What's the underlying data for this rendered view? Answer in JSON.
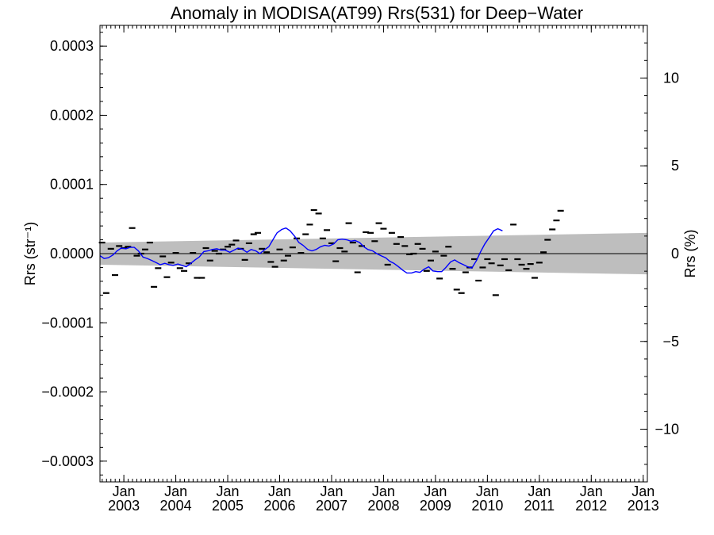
{
  "chart_data": {
    "type": "scatter",
    "title": "Anomaly in MODISA(AT99) Rrs(531) for Deep−Water",
    "ylabel_left": "Rrs (str⁻¹)",
    "ylabel_right": "Rrs (%)",
    "xlabel": "",
    "xlim": [
      2002.54,
      2013.08
    ],
    "ylim_left": [
      -0.00033,
      0.00033
    ],
    "ylim_right": [
      -13.0,
      13.0
    ],
    "left_ticks": [
      {
        "v": 0.0003,
        "label": "0.0003"
      },
      {
        "v": 0.0002,
        "label": "0.0002"
      },
      {
        "v": 0.0001,
        "label": "0.0001"
      },
      {
        "v": 0.0,
        "label": "0.0000"
      },
      {
        "v": -0.0001,
        "label": "−0.0001"
      },
      {
        "v": -0.0002,
        "label": "−0.0002"
      },
      {
        "v": -0.0003,
        "label": "−0.0003"
      }
    ],
    "right_ticks": [
      {
        "v": 10,
        "label": "10"
      },
      {
        "v": 5,
        "label": "5"
      },
      {
        "v": 0,
        "label": "0"
      },
      {
        "v": -5,
        "label": "−5"
      },
      {
        "v": -10,
        "label": "−10"
      }
    ],
    "x_ticks": [
      {
        "v": 2003.0,
        "month": "Jan",
        "year": "2003"
      },
      {
        "v": 2004.0,
        "month": "Jan",
        "year": "2004"
      },
      {
        "v": 2005.0,
        "month": "Jan",
        "year": "2005"
      },
      {
        "v": 2006.0,
        "month": "Jan",
        "year": "2006"
      },
      {
        "v": 2007.0,
        "month": "Jan",
        "year": "2007"
      },
      {
        "v": 2008.0,
        "month": "Jan",
        "year": "2008"
      },
      {
        "v": 2009.0,
        "month": "Jan",
        "year": "2009"
      },
      {
        "v": 2010.0,
        "month": "Jan",
        "year": "2010"
      },
      {
        "v": 2011.0,
        "month": "Jan",
        "year": "2011"
      },
      {
        "v": 2012.0,
        "month": "Jan",
        "year": "2012"
      },
      {
        "v": 2013.0,
        "month": "Jan",
        "year": "2013"
      }
    ],
    "band": {
      "x": [
        2002.54,
        2013.08
      ],
      "upper": [
        1.6e-05,
        3e-05
      ],
      "lower": [
        -1.6e-05,
        -3e-05
      ],
      "color": "#bebebe"
    },
    "series": [
      {
        "kind": "monthly-markers",
        "color": "#000000",
        "points": [
          {
            "x": 2002.58,
            "y": 1.6e-05
          },
          {
            "x": 2002.66,
            "y": -5.7e-05
          },
          {
            "x": 2002.75,
            "y": 7e-06
          },
          {
            "x": 2002.83,
            "y": -3.1e-05
          },
          {
            "x": 2002.91,
            "y": 1.1e-05
          },
          {
            "x": 2003.0,
            "y": 8e-06
          },
          {
            "x": 2003.08,
            "y": 1e-05
          },
          {
            "x": 2003.16,
            "y": 3.7e-05
          },
          {
            "x": 2003.25,
            "y": -3e-06
          },
          {
            "x": 2003.33,
            "y": 0.0
          },
          {
            "x": 2003.41,
            "y": 6e-06
          },
          {
            "x": 2003.5,
            "y": 1.6e-05
          },
          {
            "x": 2003.58,
            "y": -4.8e-05
          },
          {
            "x": 2003.66,
            "y": -2.1e-05
          },
          {
            "x": 2003.75,
            "y": -4e-06
          },
          {
            "x": 2003.83,
            "y": -3.4e-05
          },
          {
            "x": 2003.91,
            "y": -1.3e-05
          },
          {
            "x": 2004.0,
            "y": 1e-06
          },
          {
            "x": 2004.08,
            "y": -2.1e-05
          },
          {
            "x": 2004.16,
            "y": -2.5e-05
          },
          {
            "x": 2004.25,
            "y": -1.4e-05
          },
          {
            "x": 2004.33,
            "y": 1e-06
          },
          {
            "x": 2004.41,
            "y": -3.5e-05
          },
          {
            "x": 2004.5,
            "y": -3.5e-05
          },
          {
            "x": 2004.58,
            "y": 8e-06
          },
          {
            "x": 2004.66,
            "y": -1e-05
          },
          {
            "x": 2004.75,
            "y": 4e-06
          },
          {
            "x": 2004.83,
            "y": 0.0
          },
          {
            "x": 2004.91,
            "y": 6e-06
          },
          {
            "x": 2005.0,
            "y": 1e-05
          },
          {
            "x": 2005.08,
            "y": 1.3e-05
          },
          {
            "x": 2005.16,
            "y": 1.9e-05
          },
          {
            "x": 2005.25,
            "y": 7e-06
          },
          {
            "x": 2005.33,
            "y": -9e-06
          },
          {
            "x": 2005.41,
            "y": 1.5e-05
          },
          {
            "x": 2005.5,
            "y": 2.8e-05
          },
          {
            "x": 2005.58,
            "y": 3e-05
          },
          {
            "x": 2005.66,
            "y": 7e-06
          },
          {
            "x": 2005.75,
            "y": 2e-06
          },
          {
            "x": 2005.83,
            "y": -1.2e-05
          },
          {
            "x": 2005.91,
            "y": -1.9e-05
          },
          {
            "x": 2006.0,
            "y": 6e-06
          },
          {
            "x": 2006.08,
            "y": -1e-05
          },
          {
            "x": 2006.16,
            "y": -3e-06
          },
          {
            "x": 2006.25,
            "y": 9e-06
          },
          {
            "x": 2006.33,
            "y": 2.2e-05
          },
          {
            "x": 2006.41,
            "y": 1e-06
          },
          {
            "x": 2006.5,
            "y": 2.8e-05
          },
          {
            "x": 2006.58,
            "y": 4.2e-05
          },
          {
            "x": 2006.66,
            "y": 6.3e-05
          },
          {
            "x": 2006.75,
            "y": 5.8e-05
          },
          {
            "x": 2006.83,
            "y": 2.2e-05
          },
          {
            "x": 2006.91,
            "y": 3.4e-05
          },
          {
            "x": 2007.0,
            "y": 1.5e-05
          },
          {
            "x": 2007.08,
            "y": -1.1e-05
          },
          {
            "x": 2007.16,
            "y": 8e-06
          },
          {
            "x": 2007.25,
            "y": 3e-06
          },
          {
            "x": 2007.33,
            "y": 4.4e-05
          },
          {
            "x": 2007.41,
            "y": 1.6e-05
          },
          {
            "x": 2007.5,
            "y": -2.7e-05
          },
          {
            "x": 2007.58,
            "y": 1.1e-05
          },
          {
            "x": 2007.66,
            "y": 3.1e-05
          },
          {
            "x": 2007.75,
            "y": 3e-05
          },
          {
            "x": 2007.83,
            "y": 1.8e-05
          },
          {
            "x": 2007.91,
            "y": 4.4e-05
          },
          {
            "x": 2008.0,
            "y": 3.6e-05
          },
          {
            "x": 2008.08,
            "y": -1.6e-05
          },
          {
            "x": 2008.16,
            "y": 3e-05
          },
          {
            "x": 2008.25,
            "y": 1.4e-05
          },
          {
            "x": 2008.33,
            "y": 2.4e-05
          },
          {
            "x": 2008.41,
            "y": 1.1e-05
          },
          {
            "x": 2008.5,
            "y": -1e-06
          },
          {
            "x": 2008.58,
            "y": 0.0
          },
          {
            "x": 2008.66,
            "y": 1.4e-05
          },
          {
            "x": 2008.75,
            "y": 7e-06
          },
          {
            "x": 2008.83,
            "y": -2.5e-05
          },
          {
            "x": 2008.91,
            "y": -1e-05
          },
          {
            "x": 2009.0,
            "y": 3e-06
          },
          {
            "x": 2009.08,
            "y": -3.6e-05
          },
          {
            "x": 2009.16,
            "y": -3e-06
          },
          {
            "x": 2009.25,
            "y": 1e-05
          },
          {
            "x": 2009.33,
            "y": -2.2e-05
          },
          {
            "x": 2009.41,
            "y": -5.2e-05
          },
          {
            "x": 2009.5,
            "y": -5.7e-05
          },
          {
            "x": 2009.58,
            "y": -2.7e-05
          },
          {
            "x": 2009.66,
            "y": -2e-05
          },
          {
            "x": 2009.75,
            "y": -8e-06
          },
          {
            "x": 2009.83,
            "y": -3.9e-05
          },
          {
            "x": 2009.91,
            "y": -2e-05
          },
          {
            "x": 2010.0,
            "y": -8e-06
          },
          {
            "x": 2010.08,
            "y": -1.4e-05
          },
          {
            "x": 2010.16,
            "y": -6e-05
          },
          {
            "x": 2010.25,
            "y": -1.7e-05
          },
          {
            "x": 2010.33,
            "y": -8e-06
          },
          {
            "x": 2010.41,
            "y": -2.4e-05
          },
          {
            "x": 2010.5,
            "y": 4.2e-05
          },
          {
            "x": 2010.58,
            "y": -8e-06
          },
          {
            "x": 2010.66,
            "y": -1.6e-05
          },
          {
            "x": 2010.75,
            "y": -2.2e-05
          },
          {
            "x": 2010.83,
            "y": -1.5e-05
          },
          {
            "x": 2010.91,
            "y": -3.5e-05
          },
          {
            "x": 2011.0,
            "y": -1.3e-05
          },
          {
            "x": 2011.08,
            "y": 2e-06
          },
          {
            "x": 2011.16,
            "y": 2e-05
          },
          {
            "x": 2011.25,
            "y": 3.5e-05
          },
          {
            "x": 2011.33,
            "y": 4.8e-05
          },
          {
            "x": 2011.41,
            "y": 6.2e-05
          }
        ]
      },
      {
        "kind": "running-mean",
        "color": "#0000ff",
        "points": [
          {
            "x": 2002.54,
            "y": -3e-06
          },
          {
            "x": 2002.62,
            "y": -7e-06
          },
          {
            "x": 2002.7,
            "y": -6e-06
          },
          {
            "x": 2002.79,
            "y": -2e-06
          },
          {
            "x": 2002.87,
            "y": 4e-06
          },
          {
            "x": 2002.95,
            "y": 8e-06
          },
          {
            "x": 2003.04,
            "y": 7e-06
          },
          {
            "x": 2003.12,
            "y": 9e-06
          },
          {
            "x": 2003.2,
            "y": 9e-06
          },
          {
            "x": 2003.28,
            "y": 4e-06
          },
          {
            "x": 2003.37,
            "y": -5e-06
          },
          {
            "x": 2003.45,
            "y": -7e-06
          },
          {
            "x": 2003.54,
            "y": -1e-05
          },
          {
            "x": 2003.62,
            "y": -1.3e-05
          },
          {
            "x": 2003.7,
            "y": -1.6e-05
          },
          {
            "x": 2003.79,
            "y": -1.4e-05
          },
          {
            "x": 2003.87,
            "y": -1.6e-05
          },
          {
            "x": 2003.95,
            "y": -1.7e-05
          },
          {
            "x": 2004.04,
            "y": -1.5e-05
          },
          {
            "x": 2004.12,
            "y": -1.7e-05
          },
          {
            "x": 2004.2,
            "y": -1.9e-05
          },
          {
            "x": 2004.29,
            "y": -1.4e-05
          },
          {
            "x": 2004.37,
            "y": -9e-06
          },
          {
            "x": 2004.45,
            "y": -5e-06
          },
          {
            "x": 2004.54,
            "y": 3e-06
          },
          {
            "x": 2004.62,
            "y": 4e-06
          },
          {
            "x": 2004.7,
            "y": 6e-06
          },
          {
            "x": 2004.79,
            "y": 7e-06
          },
          {
            "x": 2004.87,
            "y": 5e-06
          },
          {
            "x": 2004.95,
            "y": 5e-06
          },
          {
            "x": 2005.04,
            "y": 2e-06
          },
          {
            "x": 2005.12,
            "y": 5e-06
          },
          {
            "x": 2005.2,
            "y": 8e-06
          },
          {
            "x": 2005.29,
            "y": 6e-06
          },
          {
            "x": 2005.37,
            "y": 2e-06
          },
          {
            "x": 2005.45,
            "y": 6e-06
          },
          {
            "x": 2005.54,
            "y": 4e-06
          },
          {
            "x": 2005.62,
            "y": 0.0
          },
          {
            "x": 2005.7,
            "y": 5e-06
          },
          {
            "x": 2005.79,
            "y": 1e-05
          },
          {
            "x": 2005.87,
            "y": 2e-05
          },
          {
            "x": 2005.95,
            "y": 3e-05
          },
          {
            "x": 2006.04,
            "y": 3.5e-05
          },
          {
            "x": 2006.12,
            "y": 3.7e-05
          },
          {
            "x": 2006.2,
            "y": 3.3e-05
          },
          {
            "x": 2006.29,
            "y": 2.5e-05
          },
          {
            "x": 2006.37,
            "y": 1.6e-05
          },
          {
            "x": 2006.45,
            "y": 1.2e-05
          },
          {
            "x": 2006.54,
            "y": 6e-06
          },
          {
            "x": 2006.62,
            "y": 4e-06
          },
          {
            "x": 2006.7,
            "y": 6e-06
          },
          {
            "x": 2006.79,
            "y": 1e-05
          },
          {
            "x": 2006.87,
            "y": 1.2e-05
          },
          {
            "x": 2006.95,
            "y": 1.1e-05
          },
          {
            "x": 2007.04,
            "y": 1.4e-05
          },
          {
            "x": 2007.12,
            "y": 2e-05
          },
          {
            "x": 2007.2,
            "y": 2.1e-05
          },
          {
            "x": 2007.29,
            "y": 2e-05
          },
          {
            "x": 2007.37,
            "y": 1.8e-05
          },
          {
            "x": 2007.45,
            "y": 1.9e-05
          },
          {
            "x": 2007.54,
            "y": 1.6e-05
          },
          {
            "x": 2007.62,
            "y": 1e-05
          },
          {
            "x": 2007.7,
            "y": 6e-06
          },
          {
            "x": 2007.79,
            "y": 4e-06
          },
          {
            "x": 2007.87,
            "y": 0.0
          },
          {
            "x": 2007.95,
            "y": -3e-06
          },
          {
            "x": 2008.04,
            "y": -6e-06
          },
          {
            "x": 2008.12,
            "y": -1.1e-05
          },
          {
            "x": 2008.2,
            "y": -1.4e-05
          },
          {
            "x": 2008.29,
            "y": -1.9e-05
          },
          {
            "x": 2008.37,
            "y": -2.4e-05
          },
          {
            "x": 2008.45,
            "y": -2.8e-05
          },
          {
            "x": 2008.54,
            "y": -2.8e-05
          },
          {
            "x": 2008.62,
            "y": -2.6e-05
          },
          {
            "x": 2008.7,
            "y": -2.7e-05
          },
          {
            "x": 2008.79,
            "y": -2.2e-05
          },
          {
            "x": 2008.87,
            "y": -1.9e-05
          },
          {
            "x": 2008.95,
            "y": -2.5e-05
          },
          {
            "x": 2009.04,
            "y": -2.6e-05
          },
          {
            "x": 2009.12,
            "y": -2.6e-05
          },
          {
            "x": 2009.2,
            "y": -2e-05
          },
          {
            "x": 2009.29,
            "y": -1.2e-05
          },
          {
            "x": 2009.37,
            "y": -9e-06
          },
          {
            "x": 2009.45,
            "y": -1.3e-05
          },
          {
            "x": 2009.54,
            "y": -1.6e-05
          },
          {
            "x": 2009.62,
            "y": -1.9e-05
          },
          {
            "x": 2009.7,
            "y": -2.1e-05
          },
          {
            "x": 2009.79,
            "y": -1e-05
          },
          {
            "x": 2009.87,
            "y": 3e-06
          },
          {
            "x": 2009.95,
            "y": 1.4e-05
          },
          {
            "x": 2010.04,
            "y": 2.4e-05
          },
          {
            "x": 2010.12,
            "y": 3.3e-05
          },
          {
            "x": 2010.2,
            "y": 3.6e-05
          },
          {
            "x": 2010.29,
            "y": 3.3e-05
          }
        ]
      }
    ]
  }
}
